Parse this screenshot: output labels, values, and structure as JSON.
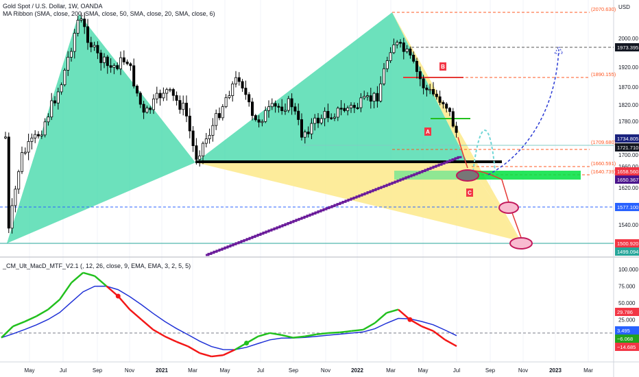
{
  "header": {
    "symbol_line": "Gold Spot / U.S. Dollar, 1W, OANDA",
    "ribbon_line": "MA Ribbon (SMA, close, 200, SMA, close, 50, SMA, close, 20, SMA, close, 6)",
    "indicator_line": "_CM_Ult_MacD_MTF_V2.1 (, 12, 26, close, 9, EMA, EMA, 3, 2, 5, 5)"
  },
  "colors": {
    "green_pattern": "#2ed4a0",
    "yellow_pattern": "#fde98a",
    "up_candle": "#ffffff",
    "down_candle": "#000000",
    "ma": "#6a1b9a",
    "orange_level": "#ff5722",
    "macd_green": "#22c01e",
    "macd_red": "#f31717",
    "signal": "#1e30d6",
    "projection_blue": "#2a3ad4",
    "projection_teal": "#6fd6d6"
  },
  "chart_data": [
    {
      "type": "candlestick",
      "title": "Gold Spot / U.S. Dollar, 1W, OANDA",
      "x_ticks": [
        "May",
        "Jul",
        "Sep",
        "Nov",
        "2021",
        "Mar",
        "May",
        "Jul",
        "Sep",
        "Nov",
        "2022",
        "Mar",
        "May",
        "Jul",
        "Sep",
        "Nov",
        "2023",
        "Mar"
      ],
      "y_unit": "USD",
      "y_ticks": [
        2000.0,
        1920.0,
        1870.0,
        1820.0,
        1780.0,
        1700.0,
        1660.0,
        1620.0,
        1580.0,
        1540.0,
        1500.0
      ],
      "ylim": [
        1470,
        2090
      ],
      "harmonic_pattern": {
        "points": [
          "A",
          "B",
          "C"
        ],
        "levels": [
          "2070.630",
          "1890.155",
          "1709.680",
          "1660.591",
          "1640.739"
        ]
      },
      "price_labels": [
        {
          "text": "1973.395",
          "kind": "black"
        },
        {
          "text": "1734.805",
          "kind": "navy"
        },
        {
          "text": "1721.710",
          "kind": "black"
        },
        {
          "text": "1658.560",
          "kind": "red"
        },
        {
          "text": "1650.367",
          "kind": "purple"
        },
        {
          "text": "1577.100",
          "kind": "blue"
        },
        {
          "text": "1500.920",
          "kind": "red"
        },
        {
          "text": "1499.094",
          "kind": "teal"
        }
      ]
    },
    {
      "type": "line",
      "title": "_CM_Ult_MacD_MTF_V2.1 (, 12, 26, close, 9, EMA, EMA, 3, 2, 5, 5)",
      "y_ticks": [
        "100.000",
        "75.000",
        "50.000",
        "25.000"
      ],
      "ylim": [
        -33,
        105
      ],
      "series": [
        {
          "values": [
            -2,
            15,
            22,
            30,
            40,
            55,
            80,
            95,
            90,
            75,
            60,
            40,
            25,
            10,
            0,
            -8,
            -15,
            -25,
            -30,
            -28,
            -20,
            -10,
            0,
            5,
            2,
            -2,
            0,
            3,
            5,
            6,
            8,
            10,
            20,
            35,
            40,
            25,
            15,
            8,
            -5,
            -14.685
          ]
        }
      ],
      "value_labels": [
        {
          "text": "29.786",
          "kind": "red"
        },
        {
          "text": "3.495",
          "kind": "blue"
        },
        {
          "text": "−6.068",
          "kind": "green"
        },
        {
          "text": "−14.685",
          "kind": "red"
        }
      ]
    }
  ]
}
